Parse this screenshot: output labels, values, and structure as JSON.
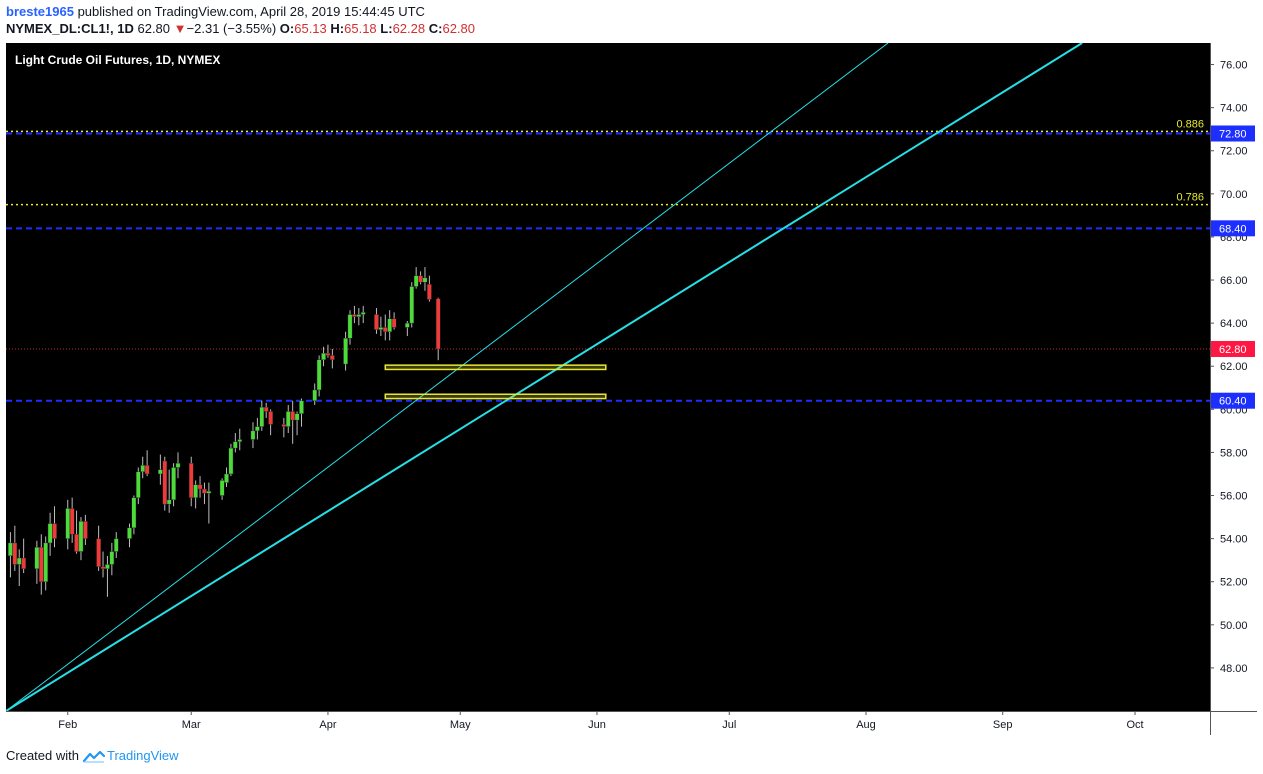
{
  "header": {
    "user": "breste1965",
    "published_text": "published on TradingView.com, April 28, 2019 15:44:45 UTC",
    "symbol": "NYMEX_DL:CL1!, 1D",
    "last": "62.80",
    "change_arrow": "▼",
    "change": "−2.31 (−3.55%)",
    "o_label": "O:",
    "o_value": "65.13",
    "h_label": "H:",
    "h_value": "65.18",
    "l_label": "L:",
    "l_value": "62.28",
    "c_label": "C:",
    "c_value": "62.80"
  },
  "footer": {
    "created_with": "Created with",
    "brand": "TradingView"
  },
  "chart_data": {
    "type": "candlestick",
    "title": "Light Crude Oil Futures, 1D, NYMEX",
    "colors": {
      "background": "#000000",
      "up": "#4cdc3a",
      "down": "#ef3a3a",
      "trendline": "#26e0e8",
      "blue_level": "#1c2fff",
      "fib_level": "#e8e832",
      "last_price": "#c62828"
    },
    "y_axis": {
      "min": 46.0,
      "max": 77.0,
      "ticks": [
        "48.00",
        "50.00",
        "52.00",
        "54.00",
        "56.00",
        "58.00",
        "60.00",
        "62.00",
        "64.00",
        "66.00",
        "68.00",
        "70.00",
        "72.00",
        "74.00",
        "76.00"
      ]
    },
    "x_axis": {
      "labels": [
        {
          "text": "Feb",
          "day": 22
        },
        {
          "text": "Mar",
          "day": 50
        },
        {
          "text": "Apr",
          "day": 81
        },
        {
          "text": "May",
          "day": 111
        },
        {
          "text": "Jun",
          "day": 142
        },
        {
          "text": "Jul",
          "day": 172
        },
        {
          "text": "Aug",
          "day": 203
        },
        {
          "text": "Sep",
          "day": 234
        },
        {
          "text": "Oct",
          "day": 264
        }
      ],
      "day_range": [
        8,
        281
      ]
    },
    "candles": [
      {
        "d": 9,
        "o": 53.2,
        "h": 54.3,
        "l": 52.2,
        "c": 53.8
      },
      {
        "d": 10,
        "o": 53.8,
        "h": 54.6,
        "l": 52.5,
        "c": 52.8
      },
      {
        "d": 11,
        "o": 52.8,
        "h": 53.5,
        "l": 51.8,
        "c": 53.1
      },
      {
        "d": 12,
        "o": 53.1,
        "h": 54.0,
        "l": 52.4,
        "c": 52.6
      },
      {
        "d": 15,
        "o": 52.6,
        "h": 53.9,
        "l": 51.9,
        "c": 53.6
      },
      {
        "d": 16,
        "o": 53.6,
        "h": 54.2,
        "l": 51.4,
        "c": 52.0
      },
      {
        "d": 17,
        "o": 52.0,
        "h": 54.1,
        "l": 51.6,
        "c": 53.8
      },
      {
        "d": 18,
        "o": 53.8,
        "h": 55.2,
        "l": 53.2,
        "c": 54.7
      },
      {
        "d": 19,
        "o": 54.7,
        "h": 55.5,
        "l": 53.6,
        "c": 54.0
      },
      {
        "d": 22,
        "o": 54.0,
        "h": 55.8,
        "l": 53.5,
        "c": 55.4
      },
      {
        "d": 23,
        "o": 55.4,
        "h": 55.9,
        "l": 53.8,
        "c": 54.2
      },
      {
        "d": 24,
        "o": 54.2,
        "h": 55.3,
        "l": 53.3,
        "c": 53.4
      },
      {
        "d": 25,
        "o": 53.4,
        "h": 55.0,
        "l": 53.0,
        "c": 54.8
      },
      {
        "d": 26,
        "o": 54.8,
        "h": 55.1,
        "l": 53.7,
        "c": 54.0
      },
      {
        "d": 29,
        "o": 54.0,
        "h": 54.6,
        "l": 52.5,
        "c": 52.7
      },
      {
        "d": 30,
        "o": 52.7,
        "h": 53.4,
        "l": 52.2,
        "c": 52.6
      },
      {
        "d": 31,
        "o": 52.6,
        "h": 53.2,
        "l": 51.3,
        "c": 52.8
      },
      {
        "d": 32,
        "o": 52.8,
        "h": 53.8,
        "l": 52.3,
        "c": 53.4
      },
      {
        "d": 33,
        "o": 53.4,
        "h": 54.3,
        "l": 53.1,
        "c": 54.0
      },
      {
        "d": 36,
        "o": 54.0,
        "h": 54.7,
        "l": 53.6,
        "c": 54.5
      },
      {
        "d": 37,
        "o": 54.5,
        "h": 56.0,
        "l": 54.2,
        "c": 55.9
      },
      {
        "d": 38,
        "o": 55.9,
        "h": 57.3,
        "l": 55.6,
        "c": 57.1
      },
      {
        "d": 39,
        "o": 57.1,
        "h": 57.8,
        "l": 56.8,
        "c": 57.4
      },
      {
        "d": 40,
        "o": 57.4,
        "h": 58.1,
        "l": 56.9,
        "c": 57.0
      },
      {
        "d": 43,
        "o": 57.0,
        "h": 57.9,
        "l": 56.5,
        "c": 57.2
      },
      {
        "d": 44,
        "o": 57.6,
        "h": 57.8,
        "l": 55.3,
        "c": 55.6
      },
      {
        "d": 45,
        "o": 55.6,
        "h": 57.2,
        "l": 55.2,
        "c": 55.8
      },
      {
        "d": 46,
        "o": 55.8,
        "h": 57.5,
        "l": 55.5,
        "c": 57.3
      },
      {
        "d": 47,
        "o": 57.3,
        "h": 58.0,
        "l": 56.8,
        "c": 57.5
      },
      {
        "d": 50,
        "o": 57.5,
        "h": 57.8,
        "l": 55.5,
        "c": 55.9
      },
      {
        "d": 51,
        "o": 55.9,
        "h": 56.7,
        "l": 55.4,
        "c": 56.5
      },
      {
        "d": 52,
        "o": 56.5,
        "h": 56.9,
        "l": 55.9,
        "c": 56.3
      },
      {
        "d": 53,
        "o": 56.3,
        "h": 56.6,
        "l": 55.6,
        "c": 56.1
      },
      {
        "d": 54,
        "o": 56.1,
        "h": 56.6,
        "l": 54.7,
        "c": 56.2
      },
      {
        "d": 57,
        "o": 56.0,
        "h": 56.8,
        "l": 55.8,
        "c": 56.7
      },
      {
        "d": 58,
        "o": 56.6,
        "h": 57.3,
        "l": 56.4,
        "c": 57.0
      },
      {
        "d": 59,
        "o": 57.0,
        "h": 58.4,
        "l": 56.9,
        "c": 58.2
      },
      {
        "d": 60,
        "o": 58.2,
        "h": 58.9,
        "l": 58.0,
        "c": 58.5
      },
      {
        "d": 61,
        "o": 58.5,
        "h": 59.1,
        "l": 58.1,
        "c": 58.6
      },
      {
        "d": 64,
        "o": 58.6,
        "h": 59.4,
        "l": 58.2,
        "c": 59.0
      },
      {
        "d": 65,
        "o": 59.0,
        "h": 59.6,
        "l": 58.6,
        "c": 59.2
      },
      {
        "d": 66,
        "o": 59.2,
        "h": 60.4,
        "l": 59.0,
        "c": 60.1
      },
      {
        "d": 67,
        "o": 60.1,
        "h": 60.3,
        "l": 59.6,
        "c": 59.9
      },
      {
        "d": 68,
        "o": 59.9,
        "h": 60.0,
        "l": 58.8,
        "c": 59.3
      },
      {
        "d": 71,
        "o": 59.3,
        "h": 59.6,
        "l": 58.7,
        "c": 59.2
      },
      {
        "d": 72,
        "o": 59.2,
        "h": 60.2,
        "l": 58.9,
        "c": 59.9
      },
      {
        "d": 73,
        "o": 59.9,
        "h": 60.4,
        "l": 58.4,
        "c": 59.5
      },
      {
        "d": 74,
        "o": 59.5,
        "h": 59.9,
        "l": 58.8,
        "c": 59.8
      },
      {
        "d": 75,
        "o": 59.8,
        "h": 60.5,
        "l": 59.2,
        "c": 60.4
      },
      {
        "d": 78,
        "o": 60.4,
        "h": 61.2,
        "l": 60.2,
        "c": 60.9
      },
      {
        "d": 79,
        "o": 60.9,
        "h": 62.5,
        "l": 60.6,
        "c": 62.3
      },
      {
        "d": 80,
        "o": 62.3,
        "h": 62.9,
        "l": 62.0,
        "c": 62.6
      },
      {
        "d": 81,
        "o": 62.6,
        "h": 63.0,
        "l": 62.4,
        "c": 62.5
      },
      {
        "d": 82,
        "o": 62.5,
        "h": 62.8,
        "l": 61.9,
        "c": 62.3
      },
      {
        "d": 85,
        "o": 62.1,
        "h": 63.6,
        "l": 61.8,
        "c": 63.3
      },
      {
        "d": 86,
        "o": 63.3,
        "h": 64.6,
        "l": 63.0,
        "c": 64.4
      },
      {
        "d": 87,
        "o": 64.4,
        "h": 64.8,
        "l": 64.0,
        "c": 64.3
      },
      {
        "d": 88,
        "o": 64.3,
        "h": 64.7,
        "l": 63.9,
        "c": 64.4
      },
      {
        "d": 89,
        "o": 64.4,
        "h": 64.8,
        "l": 64.0,
        "c": 64.5
      },
      {
        "d": 92,
        "o": 64.4,
        "h": 64.7,
        "l": 63.5,
        "c": 63.7
      },
      {
        "d": 93,
        "o": 63.7,
        "h": 64.3,
        "l": 63.4,
        "c": 63.8
      },
      {
        "d": 94,
        "o": 63.8,
        "h": 64.4,
        "l": 63.2,
        "c": 63.6
      },
      {
        "d": 95,
        "o": 63.6,
        "h": 64.6,
        "l": 63.2,
        "c": 64.2
      },
      {
        "d": 96,
        "o": 64.2,
        "h": 64.5,
        "l": 63.7,
        "c": 63.8
      },
      {
        "d": 99,
        "o": 63.8,
        "h": 64.1,
        "l": 63.4,
        "c": 64.0
      },
      {
        "d": 100,
        "o": 64.0,
        "h": 65.9,
        "l": 63.8,
        "c": 65.7
      },
      {
        "d": 101,
        "o": 65.7,
        "h": 66.6,
        "l": 65.6,
        "c": 66.2
      },
      {
        "d": 102,
        "o": 66.2,
        "h": 66.4,
        "l": 65.8,
        "c": 65.9
      },
      {
        "d": 103,
        "o": 65.9,
        "h": 66.6,
        "l": 65.5,
        "c": 66.1
      },
      {
        "d": 104,
        "o": 65.8,
        "h": 66.2,
        "l": 65.0,
        "c": 65.1
      },
      {
        "d": 106,
        "o": 65.13,
        "h": 65.18,
        "l": 62.28,
        "c": 62.8
      }
    ],
    "trendlines": [
      {
        "name": "Steep trendline",
        "x1": 8,
        "y1": 46.0,
        "x2": 208,
        "y2": 77.0,
        "width": 1
      },
      {
        "name": "Main trendline",
        "x1": 8,
        "y1": 46.0,
        "x2": 252,
        "y2": 77.0,
        "width": 2
      }
    ],
    "horizontal_levels": [
      {
        "price": 72.8,
        "kind": "blue",
        "label": "72.80"
      },
      {
        "price": 72.9,
        "kind": "fib",
        "fib_label": "0.886"
      },
      {
        "price": 69.5,
        "kind": "fib",
        "fib_label": "0.786"
      },
      {
        "price": 68.4,
        "kind": "blue",
        "label": "68.40"
      },
      {
        "price": 60.4,
        "kind": "blue",
        "label": "60.40"
      },
      {
        "price": 62.8,
        "kind": "last",
        "label": "62.80"
      }
    ],
    "zones": [
      {
        "d1": 94,
        "d2": 144,
        "p_top": 62.05,
        "p_bottom": 61.85
      },
      {
        "d1": 94,
        "d2": 144,
        "p_top": 60.7,
        "p_bottom": 60.5
      }
    ]
  }
}
